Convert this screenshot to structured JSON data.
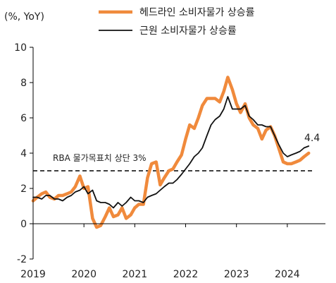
{
  "chart_data": {
    "type": "line",
    "unit_label": "(%, YoY)",
    "y_range": [
      -2,
      10
    ],
    "y_ticks": [
      "-2",
      "0",
      "2",
      "4",
      "6",
      "8",
      "10"
    ],
    "x_range": [
      2019.0,
      2024.75
    ],
    "x_ticks": [
      "2019",
      "2020",
      "2021",
      "2022",
      "2023",
      "2024"
    ],
    "grid": false,
    "legend_position": "top",
    "reference_line": {
      "label": "RBA 물가목표치 상단 3%",
      "value": 3,
      "style": "dashed"
    },
    "end_label": "4.4",
    "series": [
      {
        "name": "헤드라인 소비자물가 상승률",
        "color": "#f08a3c",
        "x": [
          2019.0,
          2019.08,
          2019.17,
          2019.25,
          2019.33,
          2019.42,
          2019.5,
          2019.58,
          2019.67,
          2019.75,
          2019.83,
          2019.92,
          2020.0,
          2020.08,
          2020.17,
          2020.25,
          2020.33,
          2020.42,
          2020.5,
          2020.58,
          2020.67,
          2020.75,
          2020.83,
          2020.92,
          2021.0,
          2021.08,
          2021.17,
          2021.25,
          2021.33,
          2021.42,
          2021.5,
          2021.58,
          2021.67,
          2021.75,
          2021.83,
          2021.92,
          2022.0,
          2022.08,
          2022.17,
          2022.25,
          2022.33,
          2022.42,
          2022.5,
          2022.58,
          2022.67,
          2022.75,
          2022.83,
          2022.92,
          2023.0,
          2023.08,
          2023.17,
          2023.25,
          2023.33,
          2023.42,
          2023.5,
          2023.58,
          2023.67,
          2023.75,
          2023.83,
          2023.92,
          2024.0,
          2024.08,
          2024.17,
          2024.25,
          2024.33,
          2024.42
        ],
        "values": [
          1.3,
          1.5,
          1.7,
          1.8,
          1.5,
          1.4,
          1.6,
          1.6,
          1.7,
          1.8,
          2.1,
          2.7,
          2.0,
          2.1,
          0.3,
          -0.2,
          -0.1,
          0.4,
          0.9,
          0.4,
          0.5,
          0.9,
          0.3,
          0.5,
          0.9,
          1.1,
          1.1,
          2.6,
          3.4,
          3.5,
          2.2,
          2.6,
          3.0,
          3.1,
          3.5,
          3.9,
          4.8,
          5.6,
          5.4,
          6.0,
          6.7,
          7.1,
          7.1,
          7.1,
          6.9,
          7.5,
          8.3,
          7.6,
          6.8,
          6.3,
          6.8,
          6.0,
          5.6,
          5.4,
          4.8,
          5.3,
          5.5,
          5.0,
          4.3,
          3.5,
          3.4,
          3.4,
          3.5,
          3.6,
          3.8,
          4.0
        ]
      },
      {
        "name": "근원 소비자물가 상승률",
        "color": "#111111",
        "x": [
          2019.0,
          2019.08,
          2019.17,
          2019.25,
          2019.33,
          2019.42,
          2019.5,
          2019.58,
          2019.67,
          2019.75,
          2019.83,
          2019.92,
          2020.0,
          2020.08,
          2020.17,
          2020.25,
          2020.33,
          2020.42,
          2020.5,
          2020.58,
          2020.67,
          2020.75,
          2020.83,
          2020.92,
          2021.0,
          2021.08,
          2021.17,
          2021.25,
          2021.33,
          2021.42,
          2021.5,
          2021.58,
          2021.67,
          2021.75,
          2021.83,
          2021.92,
          2022.0,
          2022.08,
          2022.17,
          2022.25,
          2022.33,
          2022.42,
          2022.5,
          2022.58,
          2022.67,
          2022.75,
          2022.83,
          2022.92,
          2023.0,
          2023.08,
          2023.17,
          2023.25,
          2023.33,
          2023.42,
          2023.5,
          2023.58,
          2023.67,
          2023.75,
          2023.83,
          2023.92,
          2024.0,
          2024.08,
          2024.17,
          2024.25,
          2024.33,
          2024.42
        ],
        "values": [
          1.5,
          1.5,
          1.4,
          1.6,
          1.6,
          1.4,
          1.4,
          1.3,
          1.5,
          1.6,
          1.8,
          1.9,
          2.1,
          1.7,
          1.9,
          1.3,
          1.2,
          1.2,
          1.1,
          0.9,
          1.2,
          1.0,
          1.2,
          1.5,
          1.3,
          1.3,
          1.2,
          1.5,
          1.6,
          1.7,
          1.9,
          2.1,
          2.3,
          2.3,
          2.5,
          2.8,
          3.1,
          3.4,
          3.8,
          4.0,
          4.3,
          5.0,
          5.6,
          5.9,
          6.1,
          6.5,
          7.2,
          6.5,
          6.5,
          6.5,
          6.7,
          6.1,
          5.9,
          5.6,
          5.6,
          5.5,
          5.5,
          5.0,
          4.5,
          4.0,
          3.8,
          3.9,
          4.0,
          4.1,
          4.3,
          4.4
        ]
      }
    ]
  }
}
